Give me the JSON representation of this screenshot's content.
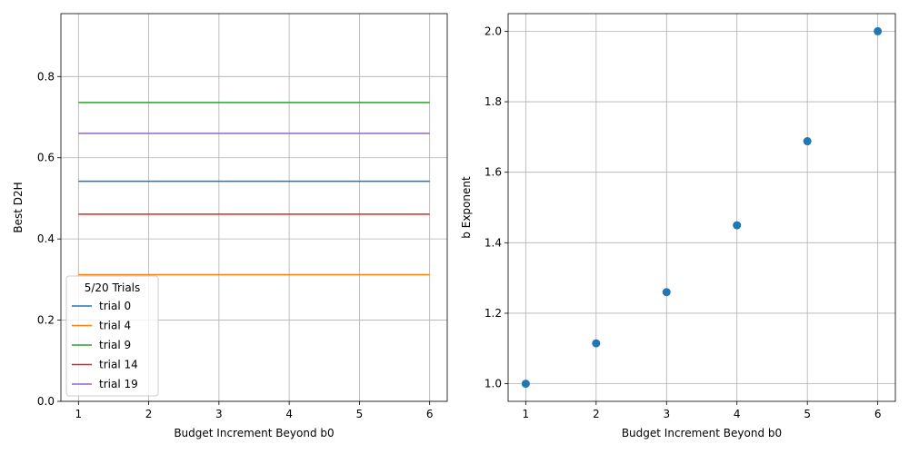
{
  "chart_data": [
    {
      "type": "line",
      "xlabel": "Budget Increment Beyond b0",
      "ylabel": "Best D2H",
      "xlim": [
        0.75,
        6.25
      ],
      "ylim": [
        0.0,
        0.955
      ],
      "xticks": [
        1,
        2,
        3,
        4,
        5,
        6
      ],
      "yticks": [
        0.0,
        0.2,
        0.4,
        0.6,
        0.8
      ],
      "ytick_labels": [
        "0.0",
        "0.2",
        "0.4",
        "0.6",
        "0.8"
      ],
      "grid": true,
      "legend": {
        "title": "5/20 Trials",
        "placement": "lower-left"
      },
      "x": [
        1,
        2,
        3,
        4,
        5,
        6
      ],
      "series": [
        {
          "name": "trial 0",
          "color": "#1f77b4",
          "values": [
            0.542,
            0.542,
            0.542,
            0.542,
            0.542,
            0.542
          ]
        },
        {
          "name": "trial 4",
          "color": "#ff7f0e",
          "values": [
            0.312,
            0.312,
            0.312,
            0.312,
            0.312,
            0.312
          ]
        },
        {
          "name": "trial 9",
          "color": "#2ca02c",
          "values": [
            0.736,
            0.736,
            0.736,
            0.736,
            0.736,
            0.736
          ]
        },
        {
          "name": "trial 14",
          "color": "#d62728",
          "values": [
            0.461,
            0.461,
            0.461,
            0.461,
            0.461,
            0.461
          ]
        },
        {
          "name": "trial 19",
          "color": "#9467bd",
          "values": [
            0.66,
            0.66,
            0.66,
            0.66,
            0.66,
            0.66
          ]
        }
      ]
    },
    {
      "type": "scatter",
      "xlabel": "Budget Increment Beyond b0",
      "ylabel": "b Exponent",
      "xlim": [
        0.75,
        6.25
      ],
      "ylim": [
        0.95,
        2.05
      ],
      "xticks": [
        1,
        2,
        3,
        4,
        5,
        6
      ],
      "yticks": [
        1.0,
        1.2,
        1.4,
        1.6,
        1.8,
        2.0
      ],
      "ytick_labels": [
        "1.0",
        "1.2",
        "1.4",
        "1.6",
        "1.8",
        "2.0"
      ],
      "grid": true,
      "color": "#1f77b4",
      "x": [
        1,
        2,
        3,
        4,
        5,
        6
      ],
      "y": [
        1.0,
        1.1147,
        1.2599,
        1.4496,
        1.6879,
        2.0
      ]
    }
  ]
}
